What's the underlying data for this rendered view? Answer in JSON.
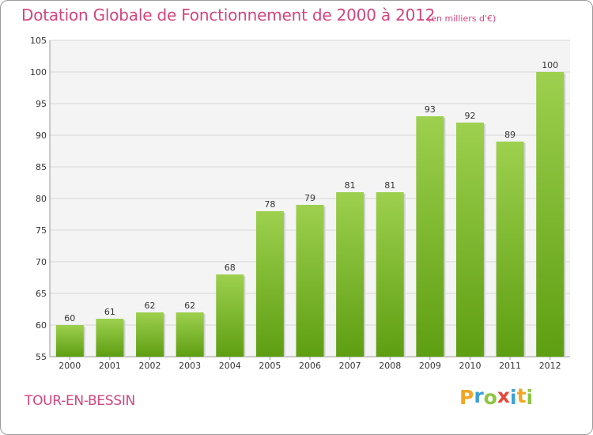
{
  "chart_data": {
    "type": "bar",
    "title": "Dotation Globale de Fonctionnement de 2000 à 2012",
    "unit_label": "(en milliers d'€)",
    "categories": [
      "2000",
      "2001",
      "2002",
      "2003",
      "2004",
      "2005",
      "2006",
      "2007",
      "2008",
      "2009",
      "2010",
      "2011",
      "2012"
    ],
    "values": [
      60,
      61,
      62,
      62,
      68,
      78,
      79,
      81,
      81,
      93,
      92,
      89,
      100
    ],
    "ylim": [
      55,
      105
    ],
    "yticks": [
      55,
      60,
      65,
      70,
      75,
      80,
      85,
      90,
      95,
      100,
      105
    ],
    "grid": true,
    "bar_color_top": "#9dd04e",
    "bar_color_bottom": "#5e9e12"
  },
  "footer": {
    "commune": "TOUR-EN-BESSIN",
    "logo_letters": [
      "P",
      "r",
      "o",
      "x",
      "i",
      "t",
      "i"
    ],
    "logo_colors": [
      "#f2a623",
      "#3aa0d8",
      "#8cc63f",
      "#e8463a",
      "#3aa0d8",
      "#f2a623",
      "#8cc63f"
    ]
  }
}
